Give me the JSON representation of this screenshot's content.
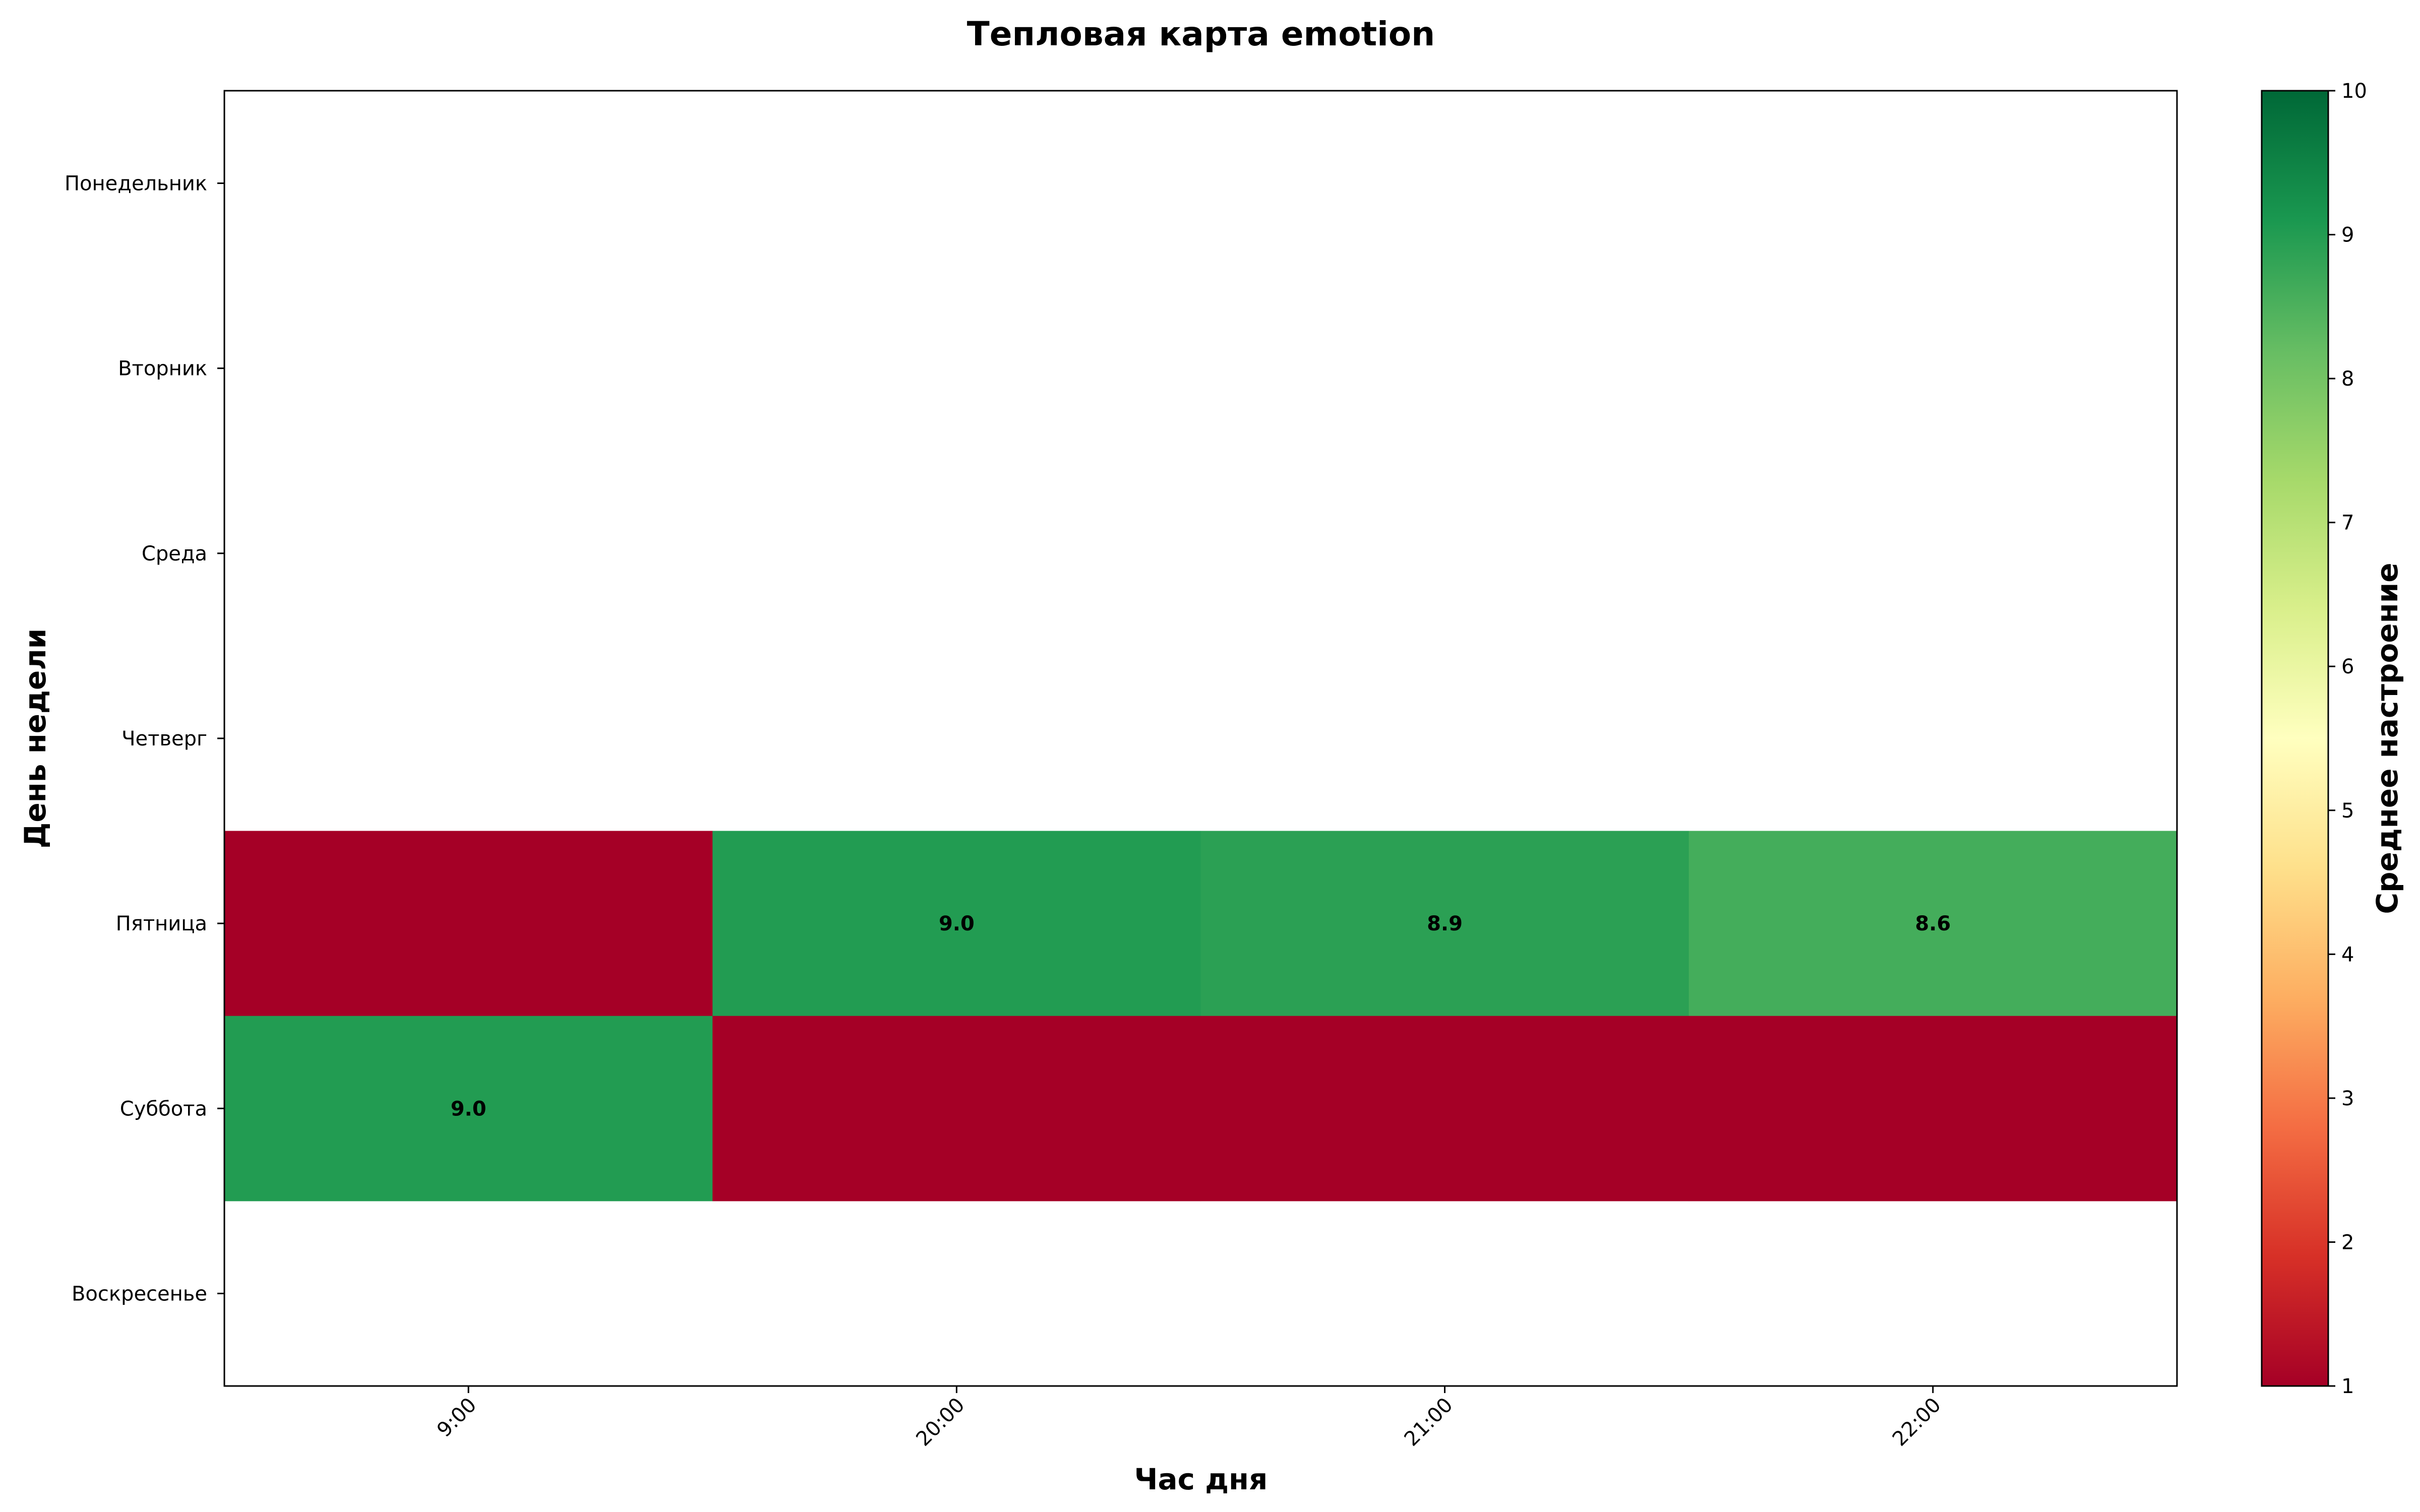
{
  "chart_data": {
    "type": "heatmap",
    "title": "Тепловая карта emotion",
    "xlabel": "Час дня",
    "ylabel": "День недели",
    "x_categories": [
      "9:00",
      "20:00",
      "21:00",
      "22:00"
    ],
    "y_categories": [
      "Понедельник",
      "Вторник",
      "Среда",
      "Четверг",
      "Пятница",
      "Суббота",
      "Воскресенье"
    ],
    "values": [
      [
        null,
        null,
        null,
        null
      ],
      [
        null,
        null,
        null,
        null
      ],
      [
        null,
        null,
        null,
        null
      ],
      [
        null,
        null,
        null,
        null
      ],
      [
        1.0,
        9.0,
        8.9,
        8.6
      ],
      [
        9.0,
        1.0,
        1.0,
        1.0
      ],
      [
        null,
        null,
        null,
        null
      ]
    ],
    "annotations": [
      {
        "row": 4,
        "col": 1,
        "text": "9.0"
      },
      {
        "row": 4,
        "col": 2,
        "text": "8.9"
      },
      {
        "row": 4,
        "col": 3,
        "text": "8.6"
      },
      {
        "row": 5,
        "col": 0,
        "text": "9.0"
      }
    ],
    "colorbar": {
      "label": "Среднее настроение",
      "range": [
        1,
        10
      ],
      "ticks": [
        "1",
        "2",
        "3",
        "4",
        "5",
        "6",
        "7",
        "8",
        "9",
        "10"
      ],
      "colormap": "RdYlGn"
    },
    "x_tick_rotation_deg": 45,
    "grid": false
  }
}
